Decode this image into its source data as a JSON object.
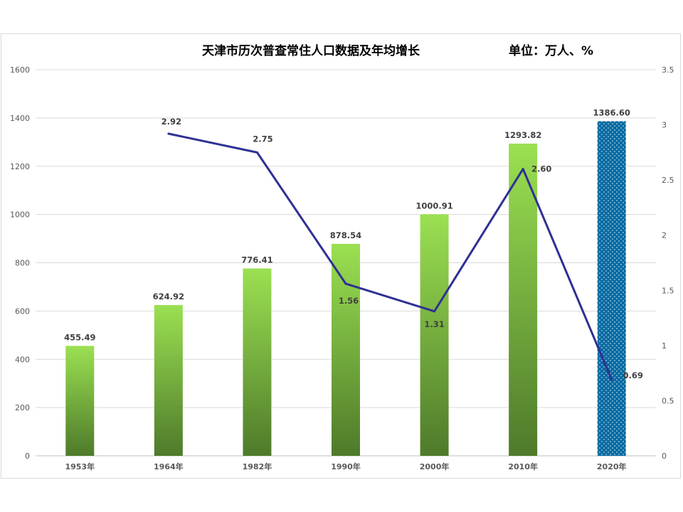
{
  "chart_data": {
    "type": "bar+line",
    "title": "天津市历次普查常住人口数据及年均增长",
    "unit": "单位：万人、%",
    "categories": [
      "1953年",
      "1964年",
      "1982年",
      "1990年",
      "2000年",
      "2010年",
      "2020年"
    ],
    "series": [
      {
        "type": "bar",
        "axis": "left",
        "values": [
          455.49,
          624.92,
          776.41,
          878.54,
          1000.91,
          1293.82,
          1386.6
        ],
        "labels": [
          "455.49",
          "624.92",
          "776.41",
          "878.54",
          "1000.91",
          "1293.82",
          "1386.60"
        ]
      },
      {
        "type": "line",
        "axis": "right",
        "values": [
          null,
          2.92,
          2.75,
          1.56,
          1.31,
          2.6,
          0.69
        ],
        "labels": [
          "",
          "2.92",
          "2.75",
          "1.56",
          "1.31",
          "2.60",
          "0.69"
        ]
      }
    ],
    "y_left": {
      "range": [
        0,
        1600
      ],
      "ticks": [
        "0",
        "200",
        "400",
        "600",
        "800",
        "1000",
        "1200",
        "1400",
        "1600"
      ]
    },
    "y_right": {
      "range": [
        0,
        3.5
      ],
      "ticks": [
        "0",
        "0.5",
        "1",
        "1.5",
        "2",
        "2.5",
        "3",
        "3.5"
      ]
    },
    "grid": true,
    "colors": {
      "bar_top": "#9be052",
      "bar_bottom": "#4e7a2a",
      "highlight_bar": "#0a6aa1",
      "line": "#2e3192"
    }
  }
}
